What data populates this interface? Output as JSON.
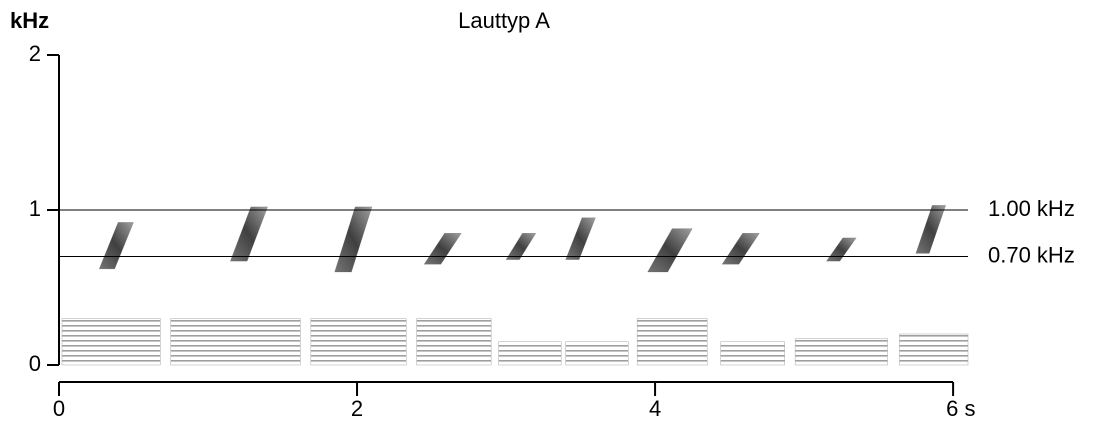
{
  "chart_data": {
    "type": "spectrogram",
    "title": "Lauttyp A",
    "y_label": "kHz",
    "xlim": [
      0,
      6.1
    ],
    "ylim": [
      0,
      2
    ],
    "xticks": [
      0,
      2,
      4,
      {
        "value": 6,
        "label": "6 s"
      }
    ],
    "yticks": [
      0,
      1,
      2
    ],
    "color": "#222222",
    "noise_color": "#9a9a9a",
    "reference_lines": [
      {
        "value": 1.0,
        "label": "1.00 kHz"
      },
      {
        "value": 0.7,
        "label": "0.70 kHz"
      }
    ],
    "notes": [
      {
        "t0": 0.27,
        "t1": 0.5,
        "f0": 0.62,
        "f1": 0.92
      },
      {
        "t0": 1.15,
        "t1": 1.4,
        "f0": 0.67,
        "f1": 1.02
      },
      {
        "t0": 1.85,
        "t1": 2.1,
        "f0": 0.6,
        "f1": 1.02
      },
      {
        "t0": 2.45,
        "t1": 2.7,
        "f0": 0.65,
        "f1": 0.85
      },
      {
        "t0": 3.0,
        "t1": 3.2,
        "f0": 0.68,
        "f1": 0.85
      },
      {
        "t0": 3.4,
        "t1": 3.6,
        "f0": 0.68,
        "f1": 0.95
      },
      {
        "t0": 3.95,
        "t1": 4.25,
        "f0": 0.6,
        "f1": 0.88
      },
      {
        "t0": 4.45,
        "t1": 4.7,
        "f0": 0.65,
        "f1": 0.85
      },
      {
        "t0": 5.15,
        "t1": 5.35,
        "f0": 0.67,
        "f1": 0.82
      },
      {
        "t0": 5.75,
        "t1": 5.95,
        "f0": 0.72,
        "f1": 1.03
      }
    ],
    "noise": [
      {
        "t0": 0.02,
        "t1": 0.68,
        "fmax": 0.3
      },
      {
        "t0": 0.75,
        "t1": 1.62,
        "fmax": 0.3
      },
      {
        "t0": 1.69,
        "t1": 2.33,
        "fmax": 0.3
      },
      {
        "t0": 2.4,
        "t1": 2.9,
        "fmax": 0.3
      },
      {
        "t0": 2.95,
        "t1": 3.37,
        "fmax": 0.15
      },
      {
        "t0": 3.4,
        "t1": 3.82,
        "fmax": 0.15
      },
      {
        "t0": 3.88,
        "t1": 4.35,
        "fmax": 0.3
      },
      {
        "t0": 4.44,
        "t1": 4.87,
        "fmax": 0.15
      },
      {
        "t0": 4.94,
        "t1": 5.56,
        "fmax": 0.17
      },
      {
        "t0": 5.64,
        "t1": 6.1,
        "fmax": 0.2
      }
    ]
  }
}
